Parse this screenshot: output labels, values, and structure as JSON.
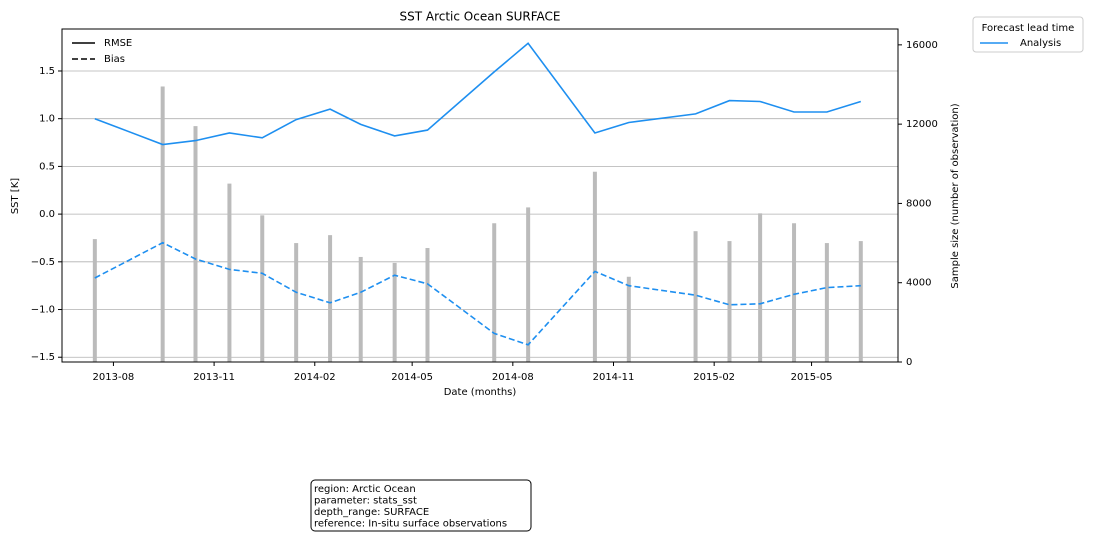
{
  "chart_data": {
    "type": "line",
    "title": "SST Arctic Ocean SURFACE",
    "x_label": "Date (months)",
    "y_label": "SST [K]",
    "y2_label": "Sample size (number of observation)",
    "x": [
      "2013-07",
      "2013-09",
      "2013-10",
      "2013-11",
      "2013-12",
      "2014-01",
      "2014-02",
      "2014-03",
      "2014-04",
      "2014-05",
      "2014-07",
      "2014-08",
      "2014-10",
      "2014-11",
      "2015-01",
      "2015-02",
      "2015-03",
      "2015-04",
      "2015-05",
      "2015-06"
    ],
    "xlim": [
      "2013-06",
      "2015-07"
    ],
    "xticks": [
      "2013-08",
      "2013-11",
      "2014-02",
      "2014-05",
      "2014-08",
      "2014-11",
      "2015-02",
      "2015-05"
    ],
    "ylim": [
      -1.55,
      1.94
    ],
    "yticks": [
      1.5,
      {
        "value": 1.0,
        "label": "1.0"
      },
      0.5,
      {
        "value": 0.0,
        "label": "0.0"
      },
      {
        "value": -0.5,
        "label": "−0.5"
      },
      {
        "value": -1.0,
        "label": "−1.0"
      },
      {
        "value": -1.5,
        "label": "−1.5"
      }
    ],
    "y2lim": [
      0,
      16800
    ],
    "y2ticks": [
      0,
      4000,
      8000,
      12000,
      16000
    ],
    "grid": true,
    "line_styles": [
      {
        "name": "RMSE",
        "dash": "solid"
      },
      {
        "name": "Bias",
        "dash": "dashed"
      }
    ],
    "legend_title": "Forecast lead time",
    "series": [
      {
        "name": "Analysis",
        "color": "#1e8ff0",
        "rmse": [
          1.0,
          0.73,
          0.77,
          0.85,
          0.8,
          0.99,
          1.1,
          0.94,
          0.82,
          0.88,
          1.49,
          1.79,
          0.85,
          0.96,
          1.05,
          1.19,
          1.18,
          1.07,
          1.07,
          1.18
        ],
        "bias": [
          -0.67,
          -0.3,
          -0.47,
          -0.58,
          -0.62,
          -0.82,
          -0.93,
          -0.82,
          -0.64,
          -0.73,
          -1.25,
          -1.37,
          -0.6,
          -0.75,
          -0.85,
          -0.95,
          -0.94,
          -0.84,
          -0.77,
          -0.75
        ]
      }
    ],
    "sample_size": {
      "axis": "y2",
      "color": "#bbbbbb",
      "values": [
        6200,
        13900,
        11900,
        9000,
        7400,
        6000,
        6400,
        5300,
        5000,
        5750,
        7000,
        7800,
        9600,
        4300,
        6600,
        6100,
        7500,
        7000,
        6000,
        6100
      ]
    },
    "annotation": [
      "region: Arctic Ocean",
      "parameter: stats_sst",
      "depth_range: SURFACE",
      "reference: In-situ surface observations"
    ]
  }
}
